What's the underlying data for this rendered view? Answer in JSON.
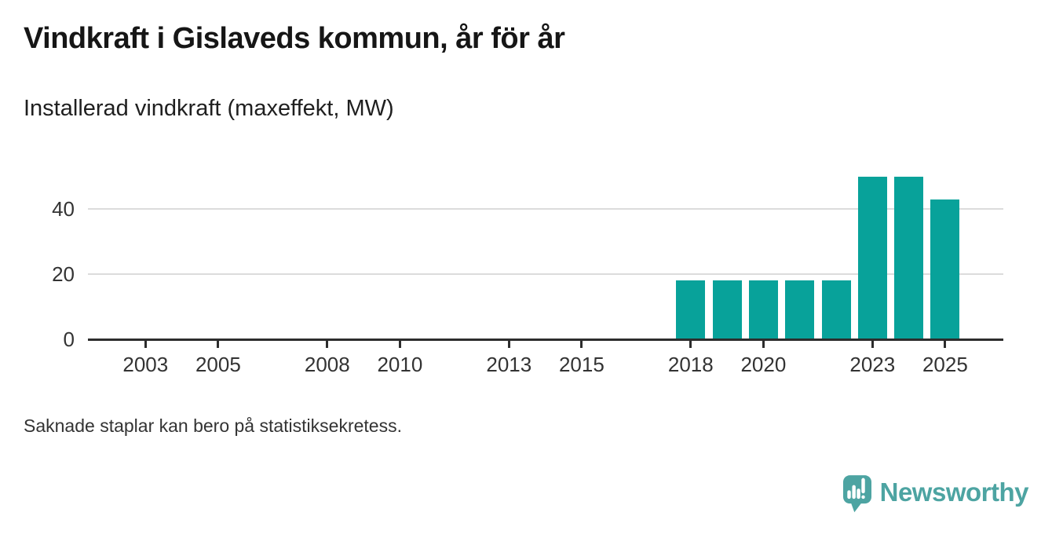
{
  "title": "Vindkraft i Gislaveds kommun, år för år",
  "subtitle": "Installerad vindkraft (maxeffekt, MW)",
  "footnote": "Saknade staplar kan bero på statistiksekretess.",
  "logo": {
    "text": "Newsworthy",
    "icon": "speech-bubble-with-bar-chart-and-exclamation"
  },
  "colors": {
    "bar": "#08a29a",
    "logo": "#4da4a2",
    "axis": "#2d2d2d",
    "grid": "#dcdcdc",
    "text_dark": "#161616",
    "text_axis": "#333333"
  },
  "chart_data": {
    "type": "bar",
    "title": "Vindkraft i Gislaveds kommun, år för år",
    "subtitle": "Installerad vindkraft (maxeffekt, MW)",
    "ylabel": "MW",
    "xlabel": "",
    "grid": true,
    "legend": "none",
    "x_domain": [
      2002,
      2026
    ],
    "x_tick_years": [
      2003,
      2005,
      2008,
      2010,
      2013,
      2015,
      2018,
      2020,
      2023,
      2025
    ],
    "y_ticks": [
      0,
      20,
      40
    ],
    "ylim": [
      0,
      54
    ],
    "series": [
      {
        "year": 2018,
        "value": 18
      },
      {
        "year": 2019,
        "value": 18
      },
      {
        "year": 2020,
        "value": 18
      },
      {
        "year": 2021,
        "value": 18
      },
      {
        "year": 2022,
        "value": 18
      },
      {
        "year": 2023,
        "value": 50
      },
      {
        "year": 2024,
        "value": 50
      },
      {
        "year": 2025,
        "value": 43
      }
    ]
  }
}
